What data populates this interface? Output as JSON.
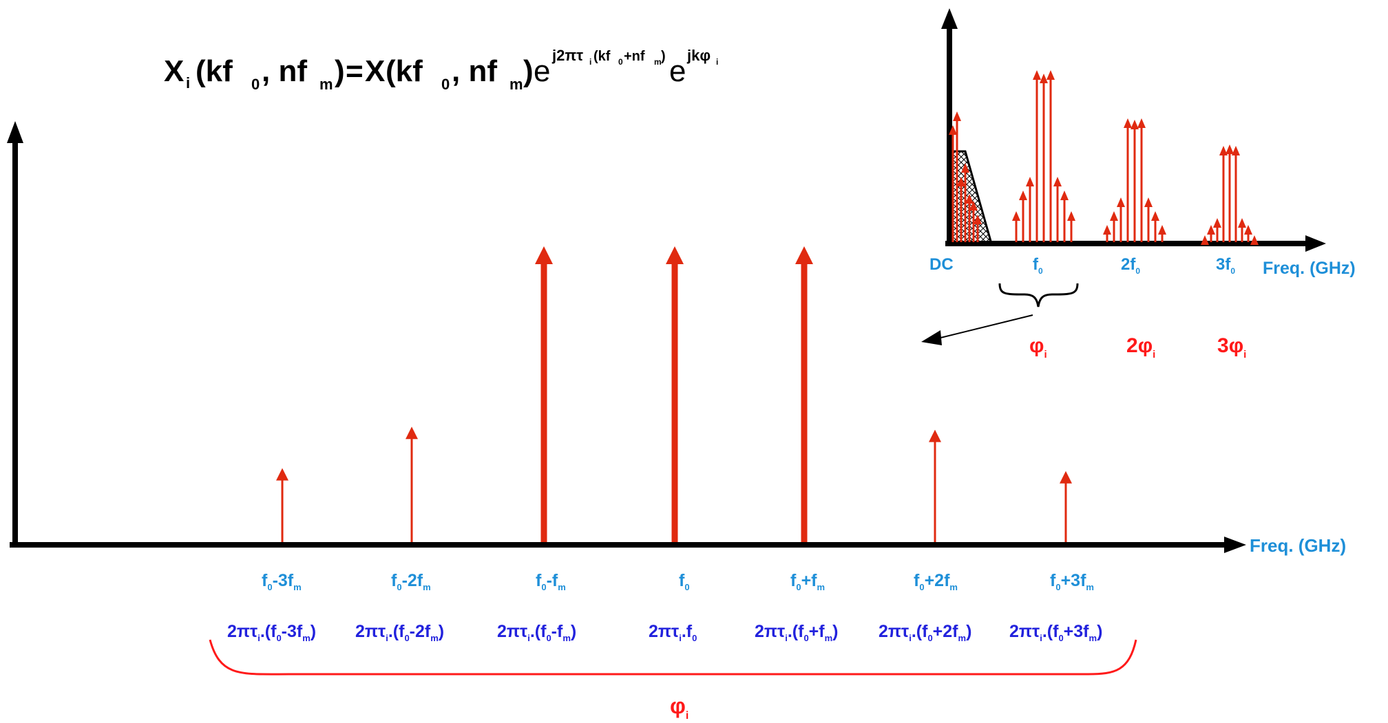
{
  "equation": {
    "lhs_X": "X",
    "lhs_sub": "i",
    "lhs_args": "(kf",
    "lhs_args_sub0": "0",
    "lhs_args_mid": ", nf",
    "lhs_args_subm": "m",
    "lhs_close": ")",
    "equals": "=",
    "rhs_X": "X",
    "rhs_args": "(kf",
    "rhs_args_sub0": "0",
    "rhs_args_mid": ", nf",
    "rhs_args_subm": "m",
    "rhs_close": ")",
    "e1": "e",
    "exp1_a": "j2πτ",
    "exp1_sub_i": "i",
    "exp1_b": "(kf",
    "exp1_sub0": "0",
    "exp1_c": "+nf",
    "exp1_subm": "m",
    "exp1_d": ")",
    "e2": "e",
    "exp2_a": "jkφ",
    "exp2_sub_i": "i"
  },
  "main_axis": {
    "label": "Freq. (GHz)"
  },
  "main_lines": [
    {
      "freq_main": "f",
      "freq_sub": "0",
      "freq_rest": "-3f",
      "freq_sub2": "m",
      "freq_end": "",
      "relative_height": 0.25,
      "thick": false
    },
    {
      "freq_main": "f",
      "freq_sub": "0",
      "freq_rest": "-2f",
      "freq_sub2": "m",
      "freq_end": "",
      "relative_height": 0.39,
      "thick": false
    },
    {
      "freq_main": "f",
      "freq_sub": "0",
      "freq_rest": "-f",
      "freq_sub2": "m",
      "freq_end": "",
      "relative_height": 1.0,
      "thick": true
    },
    {
      "freq_main": "f",
      "freq_sub": "0",
      "freq_rest": "",
      "freq_sub2": "",
      "freq_end": "",
      "relative_height": 1.0,
      "thick": true
    },
    {
      "freq_main": "f",
      "freq_sub": "0",
      "freq_rest": "+f",
      "freq_sub2": "m",
      "freq_end": "",
      "relative_height": 1.0,
      "thick": true
    },
    {
      "freq_main": "f",
      "freq_sub": "0",
      "freq_rest": "+2f",
      "freq_sub2": "m",
      "freq_end": "",
      "relative_height": 0.38,
      "thick": false
    },
    {
      "freq_main": "f",
      "freq_sub": "0",
      "freq_rest": "+3f",
      "freq_sub2": "m",
      "freq_end": "",
      "relative_height": 0.24,
      "thick": false
    }
  ],
  "phase_labels": [
    {
      "a": "2πτ",
      "sub": "i",
      "b": ".(f",
      "sub0": "0",
      "c": "-3f",
      "subm": "m",
      "d": ")"
    },
    {
      "a": "2πτ",
      "sub": "i",
      "b": ".(f",
      "sub0": "0",
      "c": "-2f",
      "subm": "m",
      "d": ")"
    },
    {
      "a": "2πτ",
      "sub": "i",
      "b": ".(f",
      "sub0": "0",
      "c": "-f",
      "subm": "m",
      "d": ")"
    },
    {
      "a": "2πτ",
      "sub": "i",
      "b": ".f",
      "sub0": "0",
      "c": "",
      "subm": "",
      "d": ""
    },
    {
      "a": "2πτ",
      "sub": "i",
      "b": ".(f",
      "sub0": "0",
      "c": "+f",
      "subm": "m",
      "d": ")"
    },
    {
      "a": "2πτ",
      "sub": "i",
      "b": ".(f",
      "sub0": "0",
      "c": "+2f",
      "subm": "m",
      "d": ")"
    },
    {
      "a": "2πτ",
      "sub": "i",
      "b": ".(f",
      "sub0": "0",
      "c": "+3f",
      "subm": "m",
      "d": ")"
    }
  ],
  "bottom_phi": {
    "sym": "φ",
    "sub": "i"
  },
  "inset": {
    "axis_label": "Freq. (GHz)",
    "ticks": [
      {
        "main": "DC",
        "sub": ""
      },
      {
        "main": "f",
        "sub": "0"
      },
      {
        "main": "2f",
        "sub": "0"
      },
      {
        "main": "3f",
        "sub": "0"
      }
    ],
    "phases": [
      {
        "coef": "",
        "sym": "φ",
        "sub": "i"
      },
      {
        "coef": "2",
        "sym": "φ",
        "sub": "i"
      },
      {
        "coef": "3",
        "sym": "φ",
        "sub": "i"
      }
    ]
  },
  "colors": {
    "axis": "#000000",
    "spectral_line": "#e02a10",
    "freq_label": "#1e8fd8",
    "phase_label": "#2222dd",
    "phi": "#ff1a1a"
  }
}
